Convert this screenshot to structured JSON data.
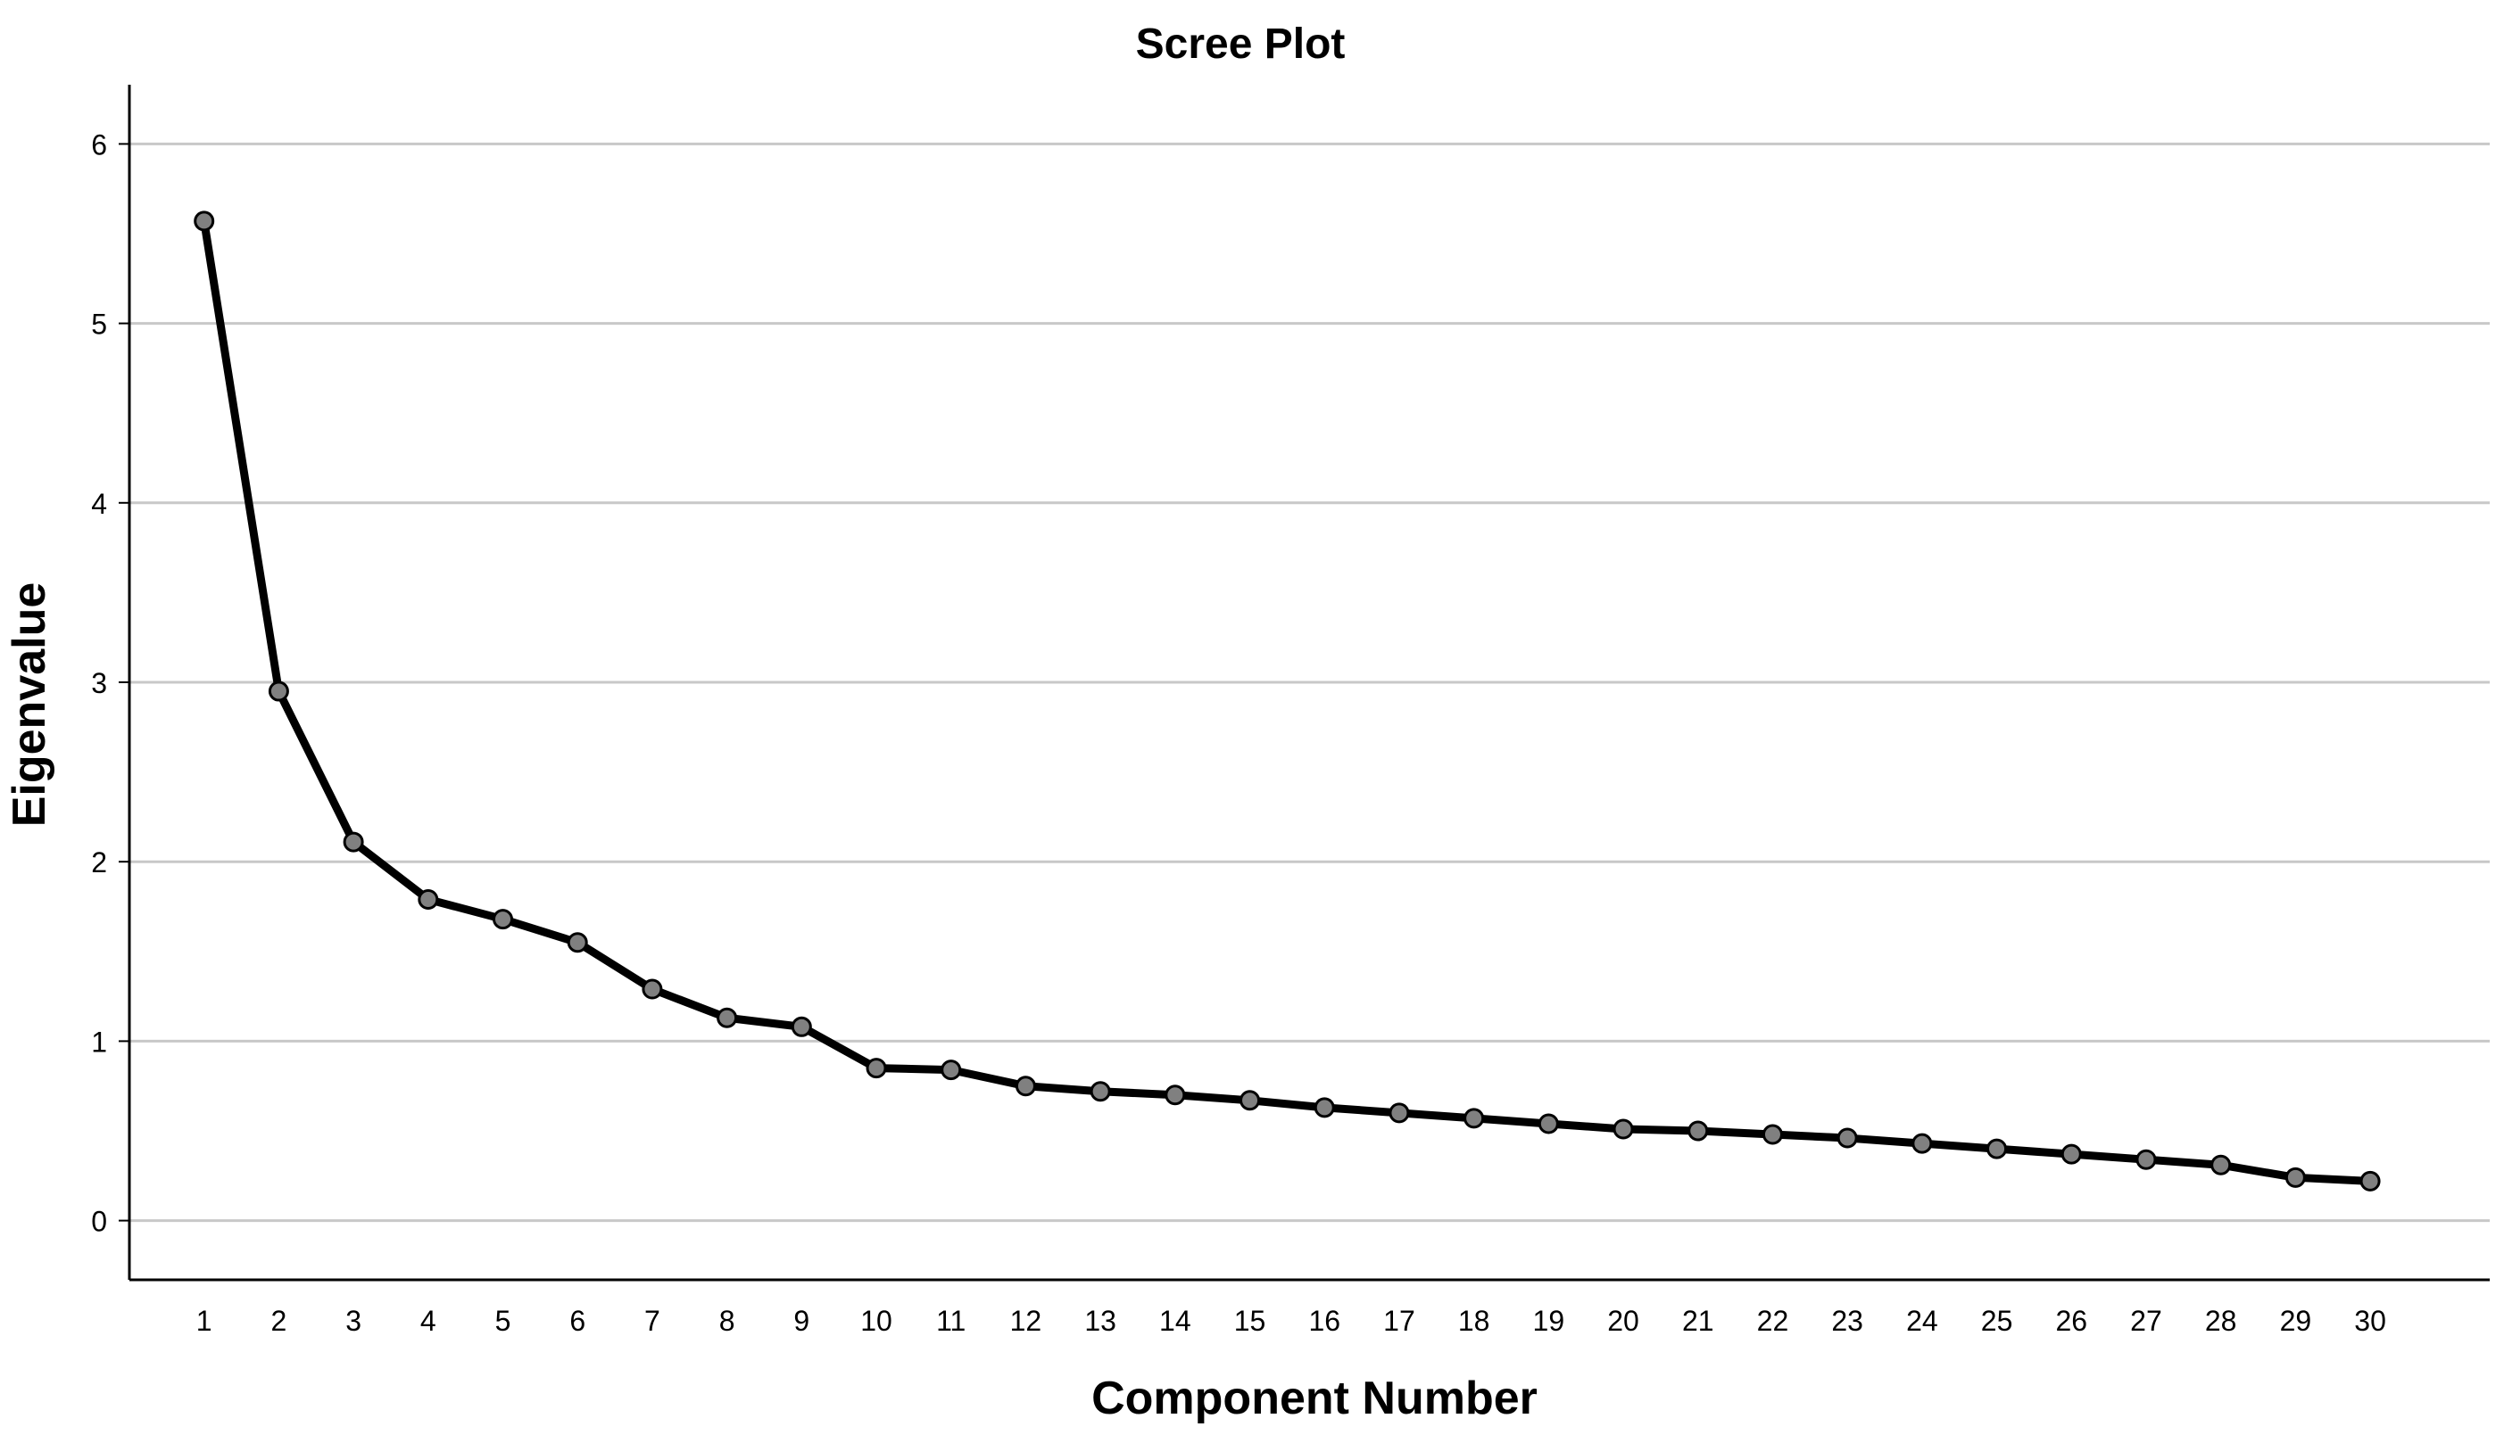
{
  "chart_data": {
    "type": "line",
    "title": "Scree Plot",
    "xlabel": "Component Number",
    "ylabel": "Eigenvalue",
    "x": [
      1,
      2,
      3,
      4,
      5,
      6,
      7,
      8,
      9,
      10,
      11,
      12,
      13,
      14,
      15,
      16,
      17,
      18,
      19,
      20,
      21,
      22,
      23,
      24,
      25,
      26,
      27,
      28,
      29,
      30
    ],
    "y": [
      5.57,
      2.95,
      2.11,
      1.79,
      1.68,
      1.55,
      1.29,
      1.13,
      1.08,
      0.85,
      0.84,
      0.75,
      0.72,
      0.7,
      0.67,
      0.63,
      0.6,
      0.57,
      0.54,
      0.51,
      0.5,
      0.48,
      0.46,
      0.43,
      0.4,
      0.37,
      0.34,
      0.31,
      0.24,
      0.22
    ],
    "xlim": [
      0,
      31.6
    ],
    "ylim": [
      -0.33,
      6.33
    ],
    "yticks": [
      0,
      1,
      2,
      3,
      4,
      5,
      6
    ],
    "grid": "horizontal",
    "legend": "none"
  },
  "colors": {
    "line": "#000000",
    "marker_fill": "#808080",
    "marker_stroke": "#000000",
    "grid": "#c8c8c8",
    "axis": "#000000",
    "text": "#000000"
  }
}
